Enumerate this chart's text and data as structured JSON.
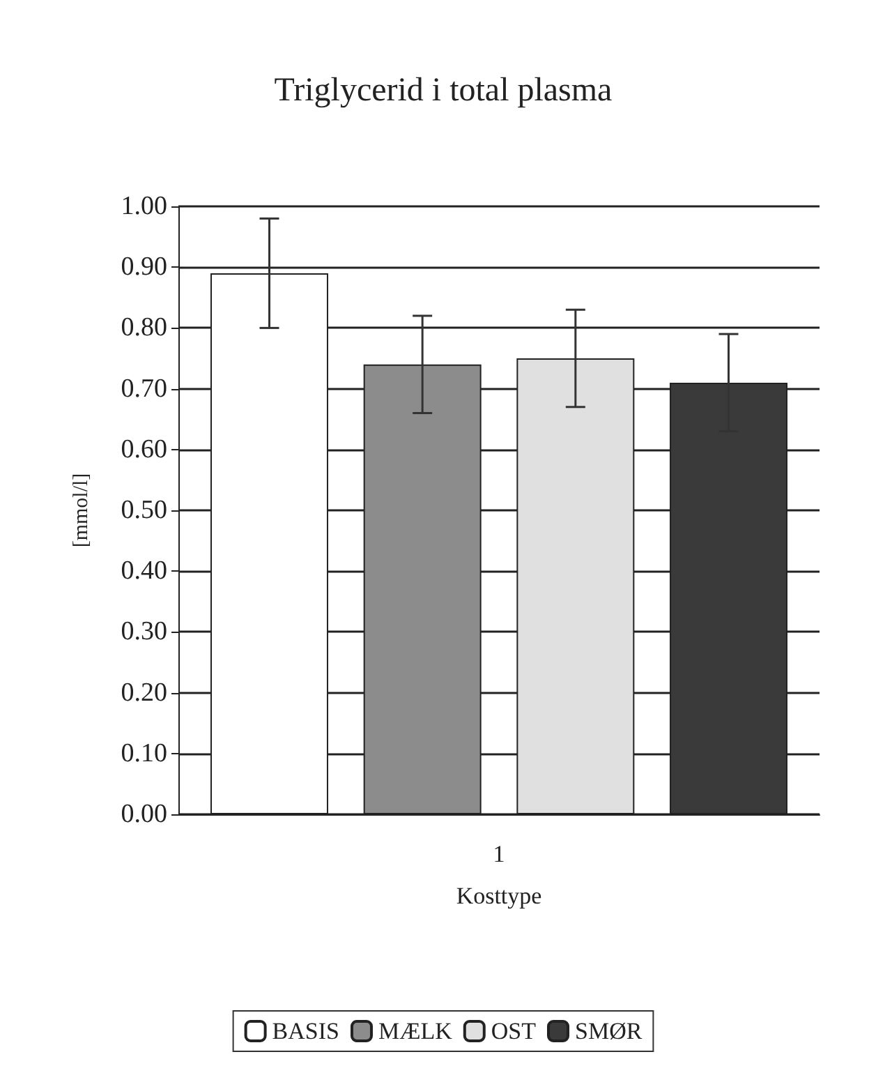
{
  "chart_data": {
    "type": "bar",
    "title": "Triglycerid i total plasma",
    "xlabel": "Kosttype",
    "ylabel": "[mmol/l]",
    "categories": [
      "1"
    ],
    "series": [
      {
        "name": "BASIS",
        "color": "#ffffff",
        "values": [
          0.89
        ],
        "errors": [
          0.09
        ]
      },
      {
        "name": "MÆLK",
        "color": "#8c8c8c",
        "values": [
          0.74
        ],
        "errors": [
          0.08
        ]
      },
      {
        "name": "OST",
        "color": "#e0e0e0",
        "values": [
          0.75
        ],
        "errors": [
          0.08
        ]
      },
      {
        "name": "SMØR",
        "color": "#3a3a3a",
        "values": [
          0.71
        ],
        "errors": [
          0.08
        ]
      }
    ],
    "ylim": [
      0,
      1
    ],
    "yticks": [
      {
        "value": 0,
        "label": "0.00"
      },
      {
        "value": 0.1,
        "label": "0.10"
      },
      {
        "value": 0.2,
        "label": "0.20"
      },
      {
        "value": 0.3,
        "label": "0.30"
      },
      {
        "value": 0.4,
        "label": "0.40"
      },
      {
        "value": 0.5,
        "label": "0.50"
      },
      {
        "value": 0.6,
        "label": "0.60"
      },
      {
        "value": 0.7,
        "label": "0.70"
      },
      {
        "value": 0.8,
        "label": "0.80"
      },
      {
        "value": 0.9,
        "label": "0.90"
      },
      {
        "value": 1,
        "label": "1.00"
      }
    ],
    "grid": "y",
    "legend": "bottom"
  }
}
